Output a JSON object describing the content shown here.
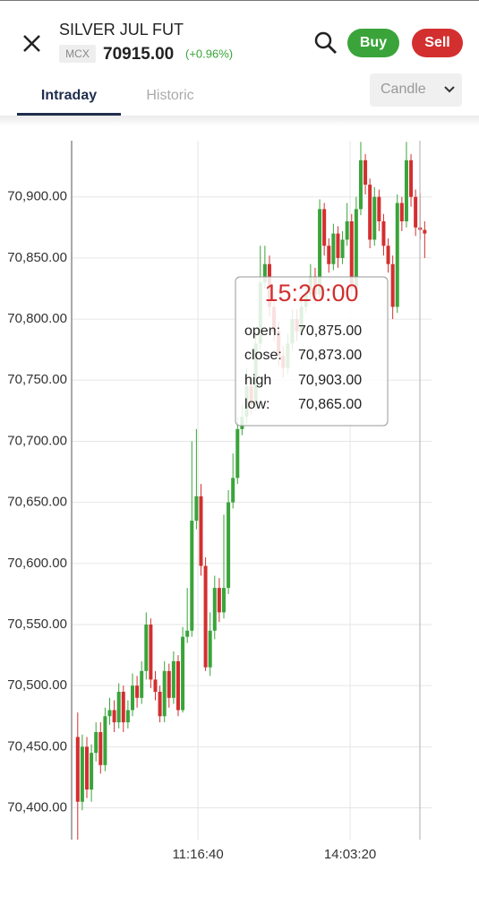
{
  "header": {
    "title": "SILVER JUL FUT",
    "exchange": "MCX",
    "price": "70915.00",
    "change": "(+0.96%)"
  },
  "buttons": {
    "buy": "Buy",
    "sell": "Sell"
  },
  "tabs": [
    "Intraday",
    "Historic"
  ],
  "chart_select": "Candle",
  "chart_data": {
    "type": "candlestick",
    "up_color": "#3aa43a",
    "down_color": "#d32f2f",
    "grid": true,
    "xlim": [
      32300,
      55950
    ],
    "xticks": [
      {
        "value": 40600,
        "label": "11:16:40"
      },
      {
        "value": 50600,
        "label": "14:03:20"
      }
    ],
    "ylim": [
      70374,
      70946
    ],
    "yticks": [
      {
        "value": 70400,
        "label": "70,400.00"
      },
      {
        "value": 70450,
        "label": "70,450.00"
      },
      {
        "value": 70500,
        "label": "70,500.00"
      },
      {
        "value": 70550,
        "label": "70,550.00"
      },
      {
        "value": 70600,
        "label": "70,600.00"
      },
      {
        "value": 70650,
        "label": "70,650.00"
      },
      {
        "value": 70700,
        "label": "70,700.00"
      },
      {
        "value": 70750,
        "label": "70,750.00"
      },
      {
        "value": 70800,
        "label": "70,800.00"
      },
      {
        "value": 70850,
        "label": "70,850.00"
      },
      {
        "value": 70900,
        "label": "70,900.00"
      }
    ],
    "x": [
      32700,
      33000,
      33300,
      33600,
      33900,
      34200,
      34500,
      34800,
      35100,
      35400,
      35700,
      36000,
      36300,
      36600,
      36900,
      37200,
      37500,
      37800,
      38100,
      38400,
      38700,
      39000,
      39300,
      39600,
      39900,
      40200,
      40500,
      40800,
      41100,
      41400,
      41700,
      42000,
      42300,
      42600,
      42900,
      43200,
      43500,
      43800,
      44100,
      44400,
      44700,
      45000,
      45300,
      45600,
      45900,
      46200,
      46500,
      46800,
      47100,
      47400,
      47700,
      48000,
      48300,
      48600,
      48900,
      49200,
      49500,
      49800,
      50100,
      50400,
      50700,
      51000,
      51300,
      51600,
      51900,
      52200,
      52500,
      52800,
      53100,
      53400,
      53700,
      54000,
      54300,
      54600,
      54900,
      55200,
      55500
    ],
    "open": [
      70458,
      70405,
      70450,
      70415,
      70445,
      70462,
      70435,
      70475,
      70480,
      70470,
      70495,
      70470,
      70480,
      70500,
      70490,
      70512,
      70550,
      70505,
      70495,
      70475,
      70512,
      70490,
      70520,
      70480,
      70540,
      70545,
      70635,
      70655,
      70598,
      70515,
      70545,
      70580,
      70560,
      70580,
      70650,
      70670,
      70710,
      70720,
      70745,
      70730,
      70780,
      70830,
      70845,
      70810,
      70790,
      70770,
      70760,
      70780,
      70800,
      70790,
      70810,
      70820,
      70835,
      70820,
      70890,
      70860,
      70845,
      70870,
      70850,
      70865,
      70880,
      70825,
      70890,
      70930,
      70910,
      70865,
      70900,
      70880,
      70860,
      70845,
      70810,
      70895,
      70880,
      70930,
      70900,
      70875,
      70873
    ],
    "high": [
      70478,
      70460,
      70458,
      70452,
      70470,
      70470,
      70482,
      70490,
      70488,
      70502,
      70500,
      70488,
      70510,
      70508,
      70520,
      70560,
      70555,
      70512,
      70500,
      70520,
      70518,
      70528,
      70525,
      70548,
      70580,
      70700,
      70710,
      70665,
      70605,
      70560,
      70590,
      70588,
      70640,
      70660,
      70690,
      70720,
      70730,
      70760,
      70752,
      70790,
      70860,
      70860,
      70852,
      70818,
      70798,
      70778,
      70788,
      70808,
      70808,
      70818,
      70828,
      70845,
      70842,
      70898,
      70895,
      70866,
      70878,
      70876,
      70872,
      70895,
      70886,
      70900,
      70945,
      70935,
      70915,
      70908,
      70906,
      70886,
      70866,
      70852,
      70902,
      70900,
      70945,
      70935,
      70906,
      70903,
      70880
    ],
    "low": [
      70374,
      70398,
      70408,
      70405,
      70438,
      70428,
      70430,
      70468,
      70462,
      70465,
      70462,
      70465,
      70475,
      70482,
      70485,
      70505,
      70498,
      70488,
      70470,
      70470,
      70482,
      70485,
      70475,
      70478,
      70535,
      70540,
      70628,
      70590,
      70512,
      70508,
      70538,
      70552,
      70555,
      70575,
      70645,
      70665,
      70705,
      70715,
      70722,
      70725,
      70775,
      70825,
      70802,
      70782,
      70762,
      70752,
      70755,
      70775,
      70782,
      70785,
      70805,
      70815,
      70812,
      70815,
      70852,
      70838,
      70840,
      70842,
      70845,
      70860,
      70818,
      70820,
      70885,
      70902,
      70858,
      70860,
      70872,
      70852,
      70838,
      70800,
      70805,
      70872,
      70875,
      70892,
      70868,
      70865,
      70850
    ],
    "close": [
      70405,
      70450,
      70415,
      70445,
      70462,
      70435,
      70475,
      70480,
      70470,
      70495,
      70470,
      70480,
      70500,
      70490,
      70512,
      70550,
      70505,
      70495,
      70475,
      70512,
      70490,
      70520,
      70480,
      70540,
      70545,
      70635,
      70655,
      70598,
      70515,
      70545,
      70580,
      70560,
      70580,
      70650,
      70670,
      70710,
      70720,
      70745,
      70730,
      70780,
      70830,
      70845,
      70810,
      70790,
      70770,
      70760,
      70780,
      70800,
      70790,
      70810,
      70820,
      70835,
      70820,
      70890,
      70860,
      70845,
      70870,
      70850,
      70865,
      70880,
      70825,
      70890,
      70930,
      70910,
      70865,
      70900,
      70880,
      70860,
      70845,
      70810,
      70895,
      70880,
      70930,
      70900,
      70875,
      70873,
      70870
    ]
  },
  "tooltip": {
    "time": "15:20:00",
    "rows": [
      {
        "label": "open:",
        "value": "70,875.00"
      },
      {
        "label": "close:",
        "value": "70,873.00"
      },
      {
        "label": "high",
        "value": "70,903.00"
      },
      {
        "label": "low:",
        "value": "70,865.00"
      }
    ]
  }
}
